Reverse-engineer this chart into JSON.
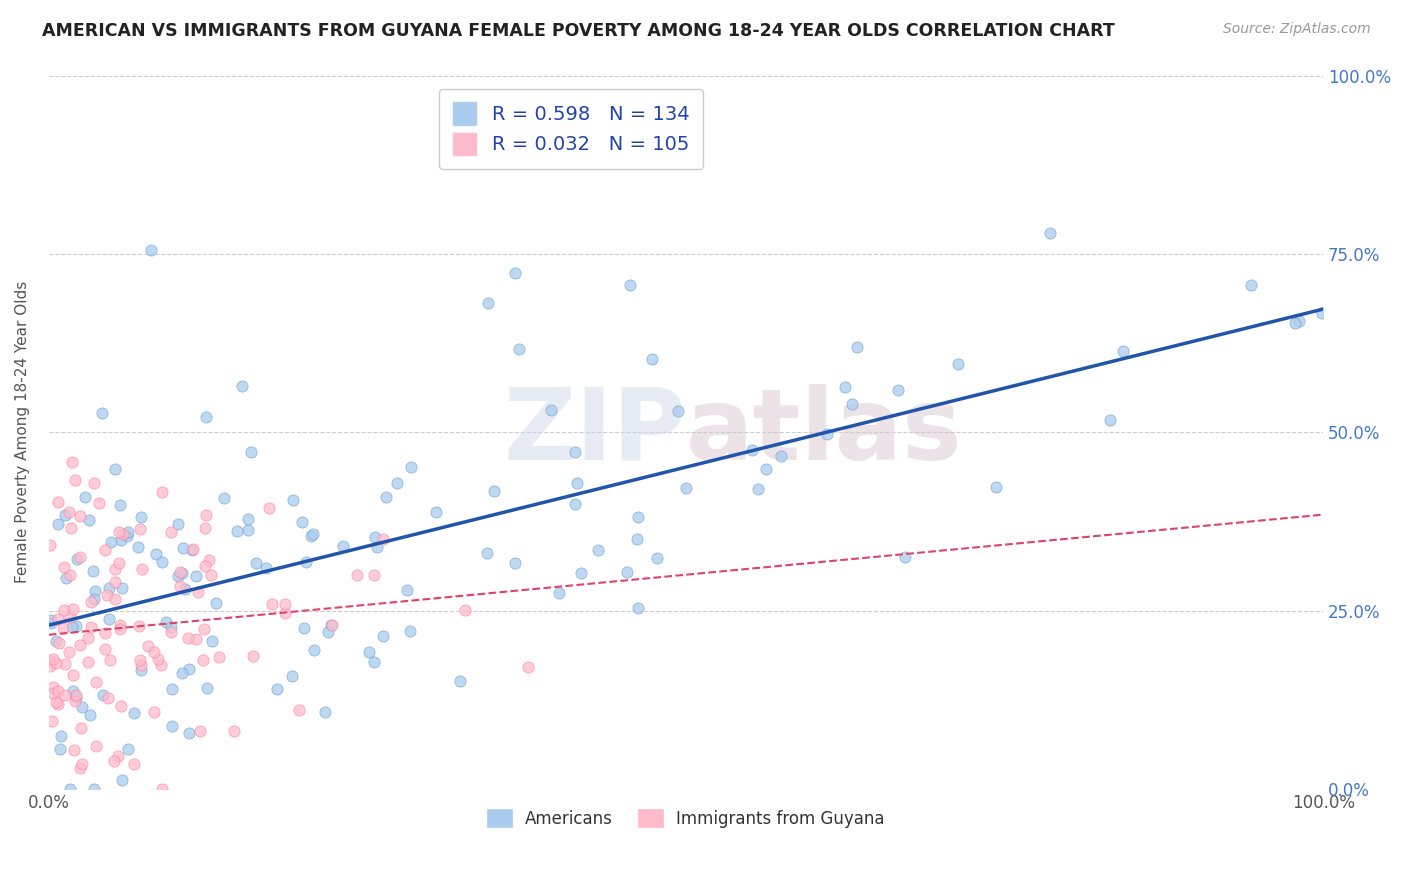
{
  "title": "AMERICAN VS IMMIGRANTS FROM GUYANA FEMALE POVERTY AMONG 18-24 YEAR OLDS CORRELATION CHART",
  "source": "Source: ZipAtlas.com",
  "ylabel": "Female Poverty Among 18-24 Year Olds",
  "watermark_zip": "ZIP",
  "watermark_atlas": "atlas",
  "xlim": [
    0,
    1
  ],
  "ylim": [
    0,
    1
  ],
  "xtick_labels": [
    "0.0%",
    "",
    "",
    "",
    "100.0%"
  ],
  "ytick_labels_right": [
    "0.0%",
    "25.0%",
    "50.0%",
    "75.0%",
    "100.0%"
  ],
  "legend_r_items": [
    {
      "label": "R = 0.598   N = 134",
      "color": "#aaccee"
    },
    {
      "label": "R = 0.032   N = 105",
      "color": "#ffbbcc"
    }
  ],
  "series": [
    {
      "name": "Americans",
      "color": "#aaccee",
      "marker_edge": "#6699cc",
      "R": 0.598,
      "N": 134,
      "seed": 42
    },
    {
      "name": "Immigrants from Guyana",
      "color": "#ffbbcc",
      "marker_edge": "#ff7799",
      "R": 0.032,
      "N": 105,
      "seed": 99
    }
  ],
  "trend_line_colors": [
    "#2255aa",
    "#dd4466"
  ],
  "bg_color": "#ffffff",
  "grid_color": "#cccccc",
  "title_color": "#222222",
  "axis_label_color": "#555555",
  "right_tick_color": "#4477cc",
  "source_color": "#999999",
  "bottom_legend_label_color": "#333333"
}
